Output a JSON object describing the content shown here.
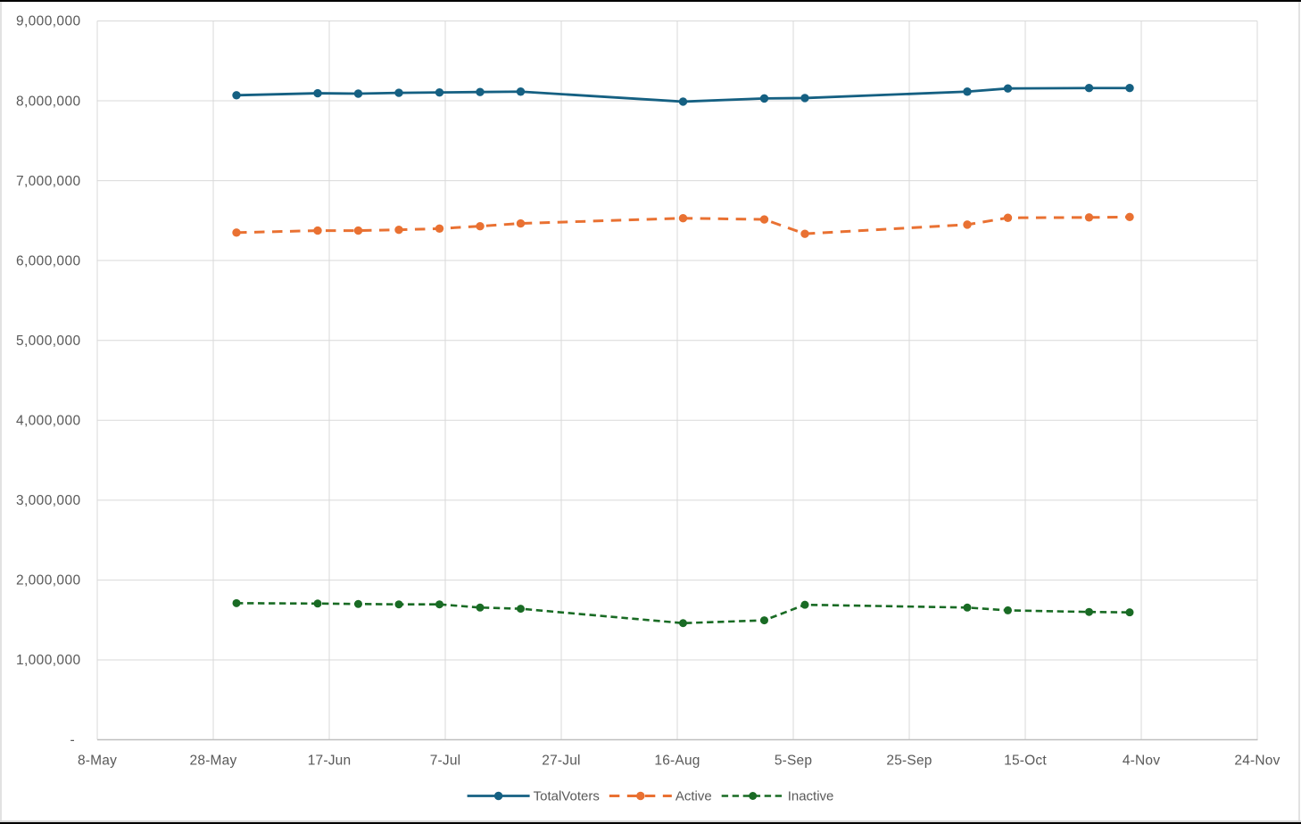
{
  "chart_data": {
    "type": "line",
    "title": "",
    "xlabel": "",
    "ylabel": "",
    "x_axis": {
      "kind": "date",
      "start_label": "8-May",
      "end_label": "24-Nov",
      "tick_interval_days": 20,
      "tick_labels": [
        "8-May",
        "28-May",
        "17-Jun",
        "7-Jul",
        "27-Jul",
        "16-Aug",
        "5-Sep",
        "25-Sep",
        "15-Oct",
        "4-Nov",
        "24-Nov"
      ],
      "tick_days": [
        0,
        20,
        40,
        60,
        80,
        100,
        120,
        140,
        160,
        180,
        200
      ]
    },
    "y_axis": {
      "min": 0,
      "max": 9000000,
      "tick_interval": 1000000,
      "tick_labels": [
        "-",
        "1,000,000",
        "2,000,000",
        "3,000,000",
        "4,000,000",
        "5,000,000",
        "6,000,000",
        "7,000,000",
        "8,000,000",
        "9,000,000"
      ],
      "tick_values": [
        0,
        1000000,
        2000000,
        3000000,
        4000000,
        5000000,
        6000000,
        7000000,
        8000000,
        9000000
      ],
      "zero_shown_as": "-"
    },
    "x": [
      "1-Jun",
      "15-Jun",
      "22-Jun",
      "29-Jun",
      "6-Jul",
      "13-Jul",
      "20-Jul",
      "17-Aug",
      "31-Aug",
      "7-Sep",
      "5-Oct",
      "12-Oct",
      "26-Oct",
      "2-Nov"
    ],
    "x_days": [
      24,
      38,
      45,
      52,
      59,
      66,
      73,
      101,
      115,
      122,
      150,
      157,
      171,
      178
    ],
    "series": [
      {
        "name": "TotalVoters",
        "color": "#156082",
        "line_style": "solid",
        "marker": "circle",
        "values": [
          8070000,
          8095000,
          8090000,
          8100000,
          8105000,
          8110000,
          8115000,
          7990000,
          8030000,
          8035000,
          8115000,
          8155000,
          8160000,
          8160000
        ]
      },
      {
        "name": "Active",
        "color": "#E97132",
        "line_style": "dashed",
        "marker": "circle",
        "values": [
          6350000,
          6375000,
          6375000,
          6385000,
          6400000,
          6430000,
          6465000,
          6530000,
          6515000,
          6335000,
          6450000,
          6535000,
          6540000,
          6545000
        ]
      },
      {
        "name": "Inactive",
        "color": "#196B24",
        "line_style": "dashed-small",
        "marker": "circle",
        "values": [
          1710000,
          1705000,
          1700000,
          1695000,
          1695000,
          1655000,
          1640000,
          1460000,
          1495000,
          1690000,
          1655000,
          1620000,
          1600000,
          1595000
        ]
      }
    ],
    "legend": {
      "position": "bottom",
      "entries": [
        "TotalVoters",
        "Active",
        "Inactive"
      ]
    },
    "grid": {
      "horizontal": true,
      "vertical": true,
      "color": "#D9D9D9"
    },
    "axis_line_color": "#BFBFBF",
    "label_color": "#595959",
    "background": "#FFFFFF"
  }
}
